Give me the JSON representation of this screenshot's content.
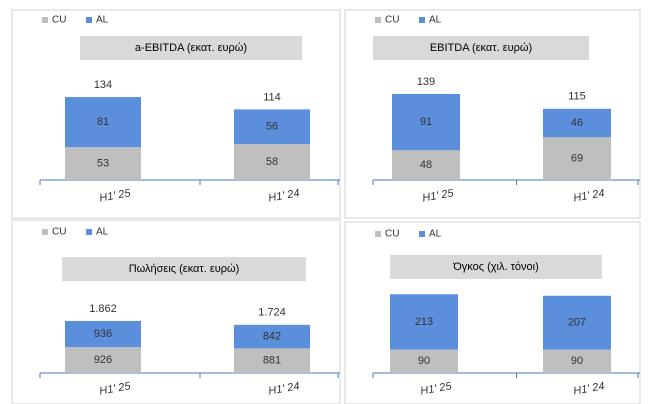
{
  "chart_data": [
    {
      "type": "stacked-bar",
      "title": "a-EBITDA (εκατ. ευρώ)",
      "categories": [
        "H1' 25",
        "H1' 24"
      ],
      "series": [
        {
          "name": "CU",
          "color": "#bfbfbf",
          "values": [
            53,
            58
          ]
        },
        {
          "name": "AL",
          "color": "#5b8fdc",
          "values": [
            81,
            56
          ]
        }
      ],
      "totals": [
        134,
        114
      ],
      "ylim": [
        0,
        210
      ]
    },
    {
      "type": "stacked-bar",
      "title": "EBITDA (εκατ. ευρώ)",
      "categories": [
        "H1' 25",
        "H1' 24"
      ],
      "series": [
        {
          "name": "CU",
          "color": "#bfbfbf",
          "values": [
            48,
            69
          ]
        },
        {
          "name": "AL",
          "color": "#5b8fdc",
          "values": [
            91,
            46
          ]
        }
      ],
      "totals": [
        139,
        115
      ],
      "ylim": [
        0,
        210
      ]
    },
    {
      "type": "stacked-bar",
      "title": "Πωλήσεις (εκατ. ευρώ)",
      "categories": [
        "H1' 25",
        "H1' 24"
      ],
      "series": [
        {
          "name": "CU",
          "color": "#bfbfbf",
          "values": [
            926,
            881
          ]
        },
        {
          "name": "AL",
          "color": "#5b8fdc",
          "values": [
            936,
            842
          ]
        }
      ],
      "totals": [
        {
          "value": 1862,
          "label": "1.862"
        },
        {
          "value": 1724,
          "label": "1.724"
        }
      ],
      "ylim": [
        0,
        4650
      ]
    },
    {
      "type": "stacked-bar",
      "title": "Όγκος (χιλ. τόνοι)",
      "categories": [
        "H1' 25",
        "H1' 24"
      ],
      "series": [
        {
          "name": "CU",
          "color": "#bfbfbf",
          "values": [
            90,
            90
          ]
        },
        {
          "name": "AL",
          "color": "#5b8fdc",
          "values": [
            213,
            207
          ]
        }
      ],
      "ylim": [
        0,
        500
      ]
    }
  ]
}
